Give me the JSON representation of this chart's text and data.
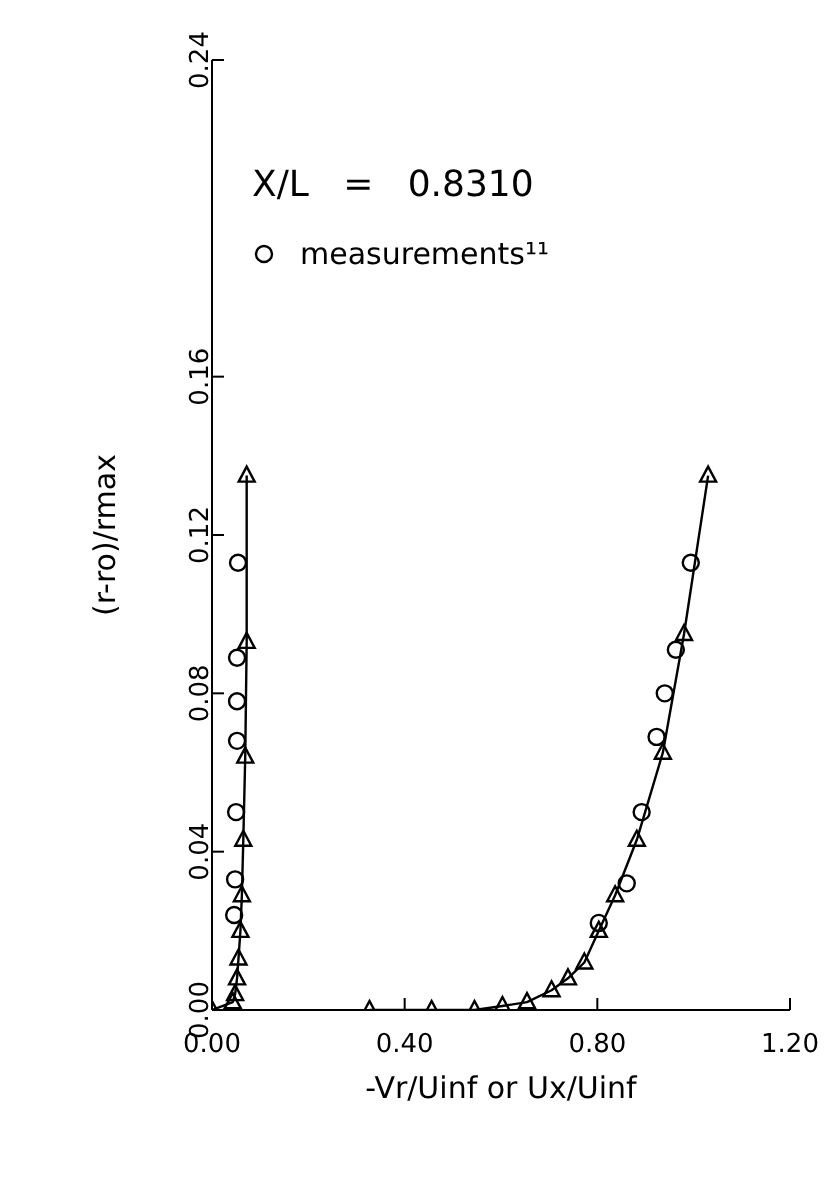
{
  "chart_data": {
    "type": "line",
    "xlabel": "-Vr/Uinf or Ux/Uinf",
    "ylabel": "(r-ro)/rmax",
    "annotations": [
      "X/L   =   0.8310"
    ],
    "xlim": [
      0,
      1.2
    ],
    "xticks": [
      {
        "value": 0,
        "label": "0.00"
      },
      {
        "value": 0.4,
        "label": "0.40"
      },
      {
        "value": 0.8,
        "label": "0.80"
      },
      {
        "value": 1.2,
        "label": "1.20"
      }
    ],
    "ylim": [
      0,
      0.24
    ],
    "yticks": [
      {
        "value": 0,
        "label": "0.00"
      },
      {
        "value": 0.04,
        "label": "0.04"
      },
      {
        "value": 0.08,
        "label": "0.08"
      },
      {
        "value": 0.12,
        "label": "0.12"
      },
      {
        "value": 0.16,
        "label": "0.16"
      },
      {
        "value": 0.24,
        "label": "0.24"
      }
    ],
    "grid": false,
    "legend": "top left",
    "marker": "triangle",
    "line_style": "solid",
    "series": [
      {
        "color": "#000000",
        "x": [
          0,
          0.043,
          0.048,
          0.052,
          0.055,
          0.059,
          0.062,
          0.065,
          0.069,
          0.072,
          0.072
        ],
        "values": [
          0,
          0.002,
          0.004,
          0.008,
          0.013,
          0.02,
          0.029,
          0.043,
          0.064,
          0.093,
          0.135
        ]
      },
      {
        "color": "#000000",
        "x": [
          0.327,
          0.456,
          0.545,
          0.603,
          0.654,
          0.705,
          0.739,
          0.773,
          0.803,
          0.837,
          0.882,
          0.936,
          0.98,
          1.03
        ],
        "values": [
          0,
          0,
          0,
          0.001,
          0.002,
          0.005,
          0.008,
          0.012,
          0.02,
          0.029,
          0.043,
          0.065,
          0.095,
          0.135
        ]
      },
      {
        "type": "scatter",
        "name": "measurements¹¹",
        "color": "#000000",
        "marker": "circle",
        "x": [
          0.046,
          0.048,
          0.05,
          0.052,
          0.052,
          0.052,
          0.054,
          0.803,
          0.861,
          0.892,
          0.923,
          0.94,
          0.963,
          0.994
        ],
        "values": [
          0.024,
          0.033,
          0.05,
          0.068,
          0.078,
          0.089,
          0.113,
          0.022,
          0.032,
          0.05,
          0.069,
          0.08,
          0.091,
          0.113
        ]
      }
    ]
  }
}
